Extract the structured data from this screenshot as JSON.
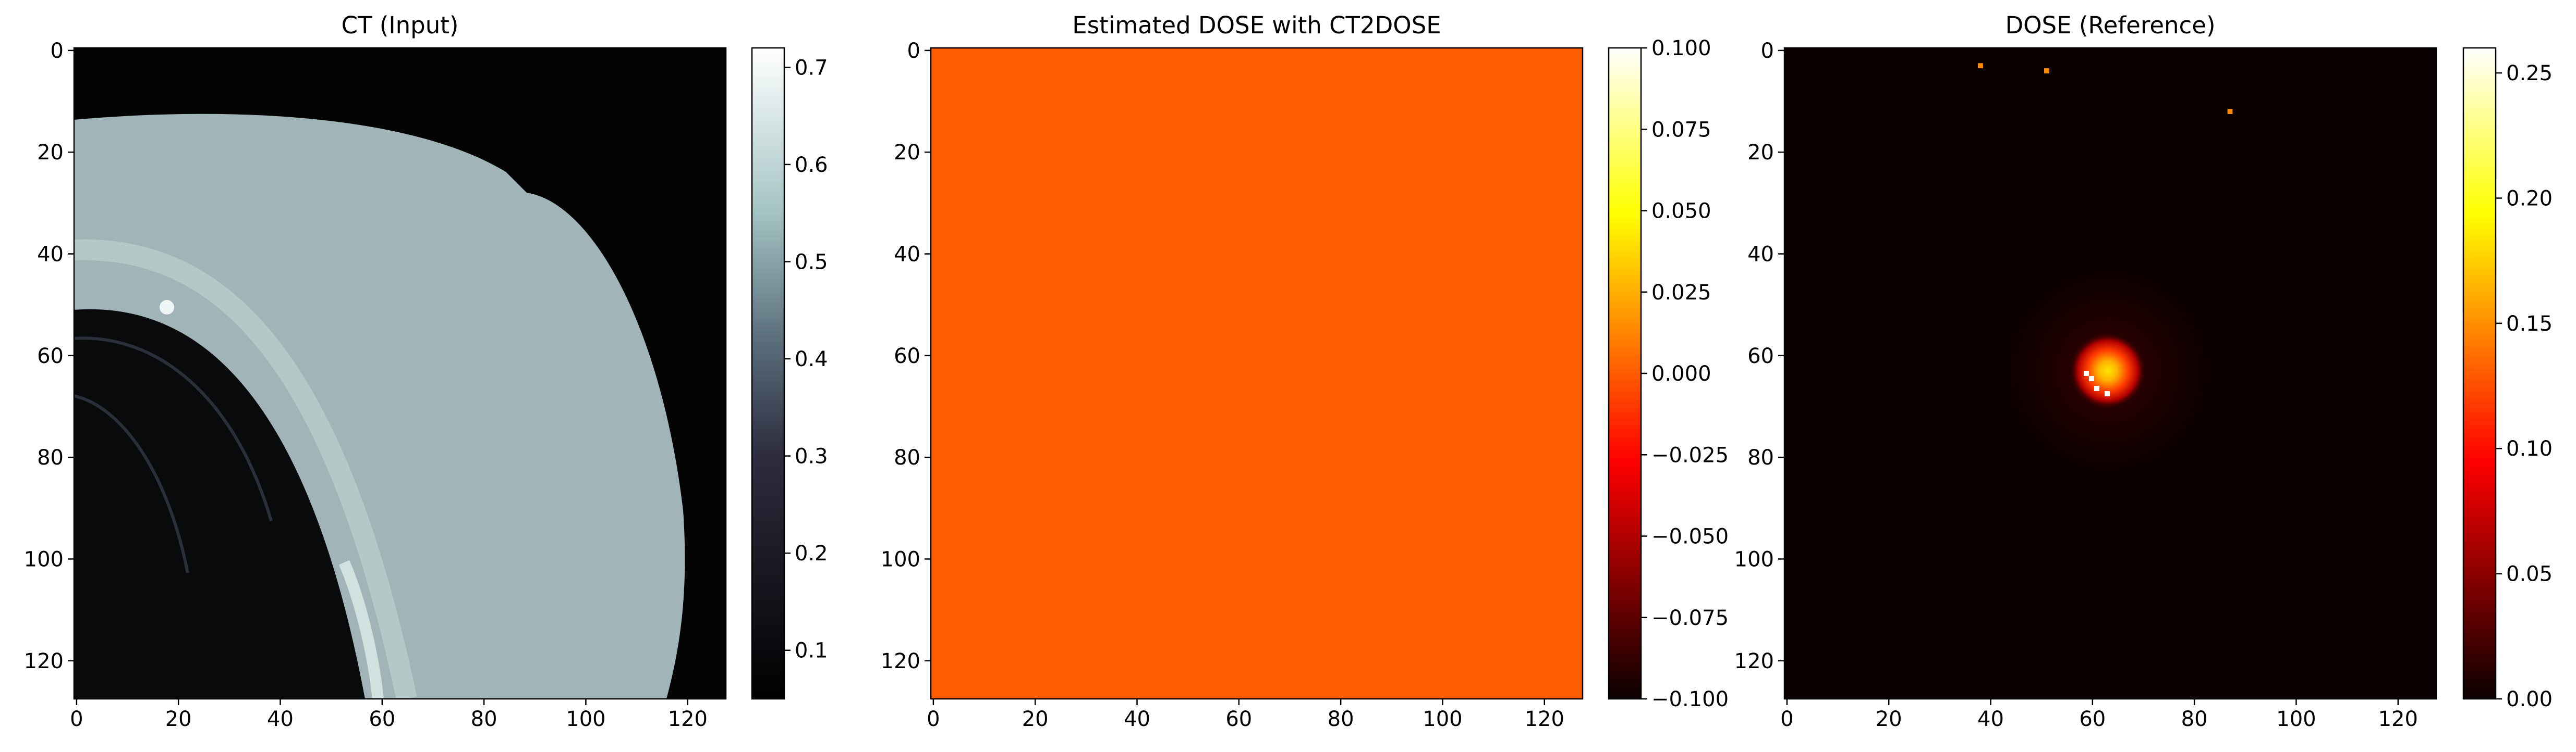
{
  "colors": {
    "figure_background": "#ffffff",
    "dose_estimate_fill": "#ff5c00",
    "dose_reference_background": "#0a0000",
    "ct_background": "#040405"
  },
  "panels": [
    {
      "id": "ct",
      "title": "CT (Input)",
      "x_ticks": [
        "0",
        "20",
        "40",
        "60",
        "80",
        "100",
        "120"
      ],
      "y_ticks": [
        "0",
        "20",
        "40",
        "60",
        "80",
        "100",
        "120"
      ],
      "colormap": "bone",
      "colorbar": {
        "min": 0.05,
        "max": 0.72,
        "ticks": [
          {
            "value": 0.1,
            "label": "0.1"
          },
          {
            "value": 0.2,
            "label": "0.2"
          },
          {
            "value": 0.3,
            "label": "0.3"
          },
          {
            "value": 0.4,
            "label": "0.4"
          },
          {
            "value": 0.5,
            "label": "0.5"
          },
          {
            "value": 0.6,
            "label": "0.6"
          },
          {
            "value": 0.7,
            "label": "0.7"
          }
        ]
      }
    },
    {
      "id": "estimated",
      "title": "Estimated DOSE with CT2DOSE",
      "x_ticks": [
        "0",
        "20",
        "40",
        "60",
        "80",
        "100",
        "120"
      ],
      "y_ticks": [
        "0",
        "20",
        "40",
        "60",
        "80",
        "100",
        "120"
      ],
      "colormap": "hot",
      "colorbar": {
        "min": -0.1,
        "max": 0.1,
        "ticks": [
          {
            "value": -0.1,
            "label": "−0.100"
          },
          {
            "value": -0.075,
            "label": "−0.075"
          },
          {
            "value": -0.05,
            "label": "−0.050"
          },
          {
            "value": -0.025,
            "label": "−0.025"
          },
          {
            "value": 0.0,
            "label": "0.000"
          },
          {
            "value": 0.025,
            "label": "0.025"
          },
          {
            "value": 0.05,
            "label": "0.050"
          },
          {
            "value": 0.075,
            "label": "0.075"
          },
          {
            "value": 0.1,
            "label": "0.100"
          }
        ]
      }
    },
    {
      "id": "reference",
      "title": "DOSE (Reference)",
      "x_ticks": [
        "0",
        "20",
        "40",
        "60",
        "80",
        "100",
        "120"
      ],
      "y_ticks": [
        "0",
        "20",
        "40",
        "60",
        "80",
        "100",
        "120"
      ],
      "colormap": "hot",
      "colorbar": {
        "min": 0.0,
        "max": 0.26,
        "ticks": [
          {
            "value": 0.0,
            "label": "0.00"
          },
          {
            "value": 0.05,
            "label": "0.05"
          },
          {
            "value": 0.1,
            "label": "0.10"
          },
          {
            "value": 0.15,
            "label": "0.15"
          },
          {
            "value": 0.2,
            "label": "0.20"
          },
          {
            "value": 0.25,
            "label": "0.25"
          }
        ]
      }
    }
  ],
  "chart_data": [
    {
      "type": "heatmap",
      "title": "CT (Input)",
      "xlim": [
        -0.5,
        127.5
      ],
      "ylim": [
        127.5,
        -0.5
      ],
      "colormap": "bone",
      "value_range": [
        0.05,
        0.72
      ]
    },
    {
      "type": "heatmap",
      "title": "Estimated DOSE with CT2DOSE",
      "xlim": [
        -0.5,
        127.5
      ],
      "ylim": [
        127.5,
        -0.5
      ],
      "colormap": "hot",
      "value_range": [
        -0.1,
        0.1
      ],
      "uniform_value": 0.0
    },
    {
      "type": "heatmap",
      "title": "DOSE (Reference)",
      "xlim": [
        -0.5,
        127.5
      ],
      "ylim": [
        127.5,
        -0.5
      ],
      "colormap": "hot",
      "value_range": [
        0.0,
        0.26
      ],
      "hotspot": {
        "x": 63,
        "y": 63,
        "peak": 0.26
      },
      "isolated_pixels": [
        {
          "x": 38,
          "y": 3,
          "value": 0.14
        },
        {
          "x": 51,
          "y": 4,
          "value": 0.14
        },
        {
          "x": 87,
          "y": 12,
          "value": 0.14
        }
      ]
    }
  ]
}
